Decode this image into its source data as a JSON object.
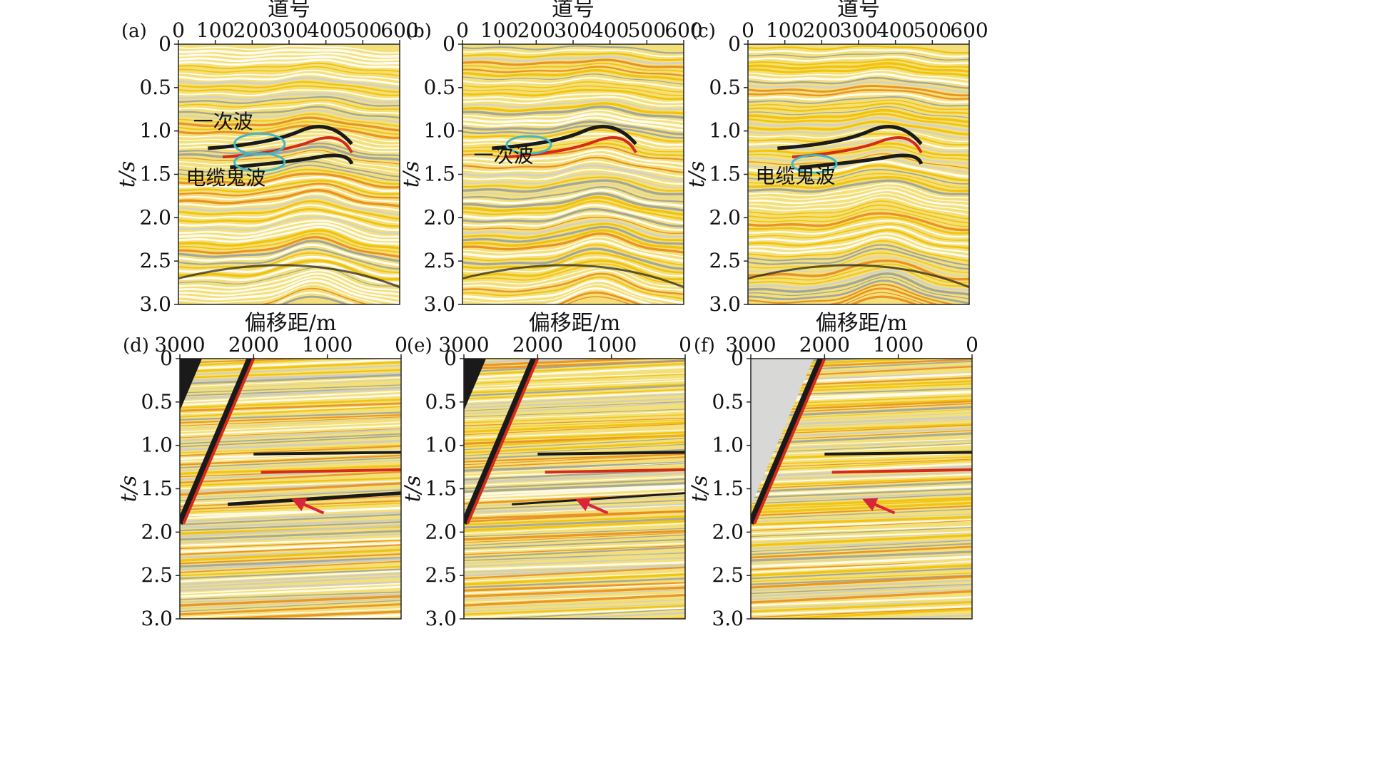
{
  "colors": {
    "background": "#ffffff",
    "seismic_base": "#f3e07a",
    "seismic_yellow": "#f2c000",
    "seismic_orange": "#e98a1a",
    "seismic_red": "#d62a1a",
    "seismic_black": "#1a1a1a",
    "seismic_grey": "#9aa0a0",
    "ellipse": "#3fb7c9",
    "arrow": "#d9253a"
  },
  "top_row": {
    "x_axis_title": "道号",
    "x_ticks": [
      "0",
      "100",
      "200",
      "300",
      "400",
      "500",
      "600"
    ],
    "y_axis_title": "t/s",
    "y_ticks": [
      "0",
      "0.5",
      "1.0",
      "1.5",
      "2.0",
      "2.5",
      "3.0"
    ]
  },
  "bottom_row": {
    "x_axis_title": "偏移距/m",
    "x_ticks": [
      "3000",
      "2000",
      "1000",
      "0"
    ],
    "y_axis_title": "t/s",
    "y_ticks": [
      "0",
      "0.5",
      "1.0",
      "1.5",
      "2.0",
      "2.5",
      "3.0"
    ]
  },
  "chart_data": [
    {
      "type": "heatmap",
      "panel": "(a)",
      "xlabel": "道号",
      "ylabel": "t/s",
      "xlim": [
        0,
        600
      ],
      "ylim": [
        3.0,
        0
      ],
      "annotations": [
        {
          "text": "一次波",
          "trace": 40,
          "time": 0.97
        },
        {
          "text": "电缆鬼波",
          "trace": 20,
          "time": 1.62
        }
      ],
      "ellipses": [
        {
          "trace": 220,
          "time": 1.15,
          "rx_traces": 68,
          "ry_time": 0.12
        },
        {
          "trace": 220,
          "time": 1.36,
          "rx_traces": 68,
          "ry_time": 0.1
        }
      ]
    },
    {
      "type": "heatmap",
      "panel": "(b)",
      "xlabel": "道号",
      "ylabel": "t/s",
      "xlim": [
        0,
        600
      ],
      "ylim": [
        3.0,
        0
      ],
      "annotations": [
        {
          "text": "一次波",
          "trace": 30,
          "time": 1.36
        }
      ],
      "ellipses": [
        {
          "trace": 180,
          "time": 1.16,
          "rx_traces": 60,
          "ry_time": 0.1
        }
      ]
    },
    {
      "type": "heatmap",
      "panel": "(c)",
      "xlabel": "道号",
      "ylabel": "t/s",
      "xlim": [
        0,
        600
      ],
      "ylim": [
        3.0,
        0
      ],
      "annotations": [
        {
          "text": "电缆鬼波",
          "trace": 20,
          "time": 1.6
        }
      ],
      "ellipses": [
        {
          "trace": 180,
          "time": 1.38,
          "rx_traces": 60,
          "ry_time": 0.1
        }
      ]
    },
    {
      "type": "heatmap",
      "panel": "(d)",
      "xlabel": "偏移距/m",
      "ylabel": "t/s",
      "xlim": [
        3000,
        0
      ],
      "ylim": [
        3.0,
        0
      ],
      "arrows": [
        {
          "offset": 1050,
          "time": 1.78,
          "tip_offset": 1400,
          "tip_time": 1.65
        }
      ]
    },
    {
      "type": "heatmap",
      "panel": "(e)",
      "xlabel": "偏移距/m",
      "ylabel": "t/s",
      "xlim": [
        3000,
        0
      ],
      "ylim": [
        3.0,
        0
      ],
      "arrows": [
        {
          "offset": 1050,
          "time": 1.78,
          "tip_offset": 1400,
          "tip_time": 1.65
        }
      ]
    },
    {
      "type": "heatmap",
      "panel": "(f)",
      "xlabel": "偏移距/m",
      "ylabel": "t/s",
      "xlim": [
        3000,
        0
      ],
      "ylim": [
        3.0,
        0
      ],
      "arrows": [
        {
          "offset": 1050,
          "time": 1.78,
          "tip_offset": 1400,
          "tip_time": 1.65
        }
      ]
    }
  ]
}
